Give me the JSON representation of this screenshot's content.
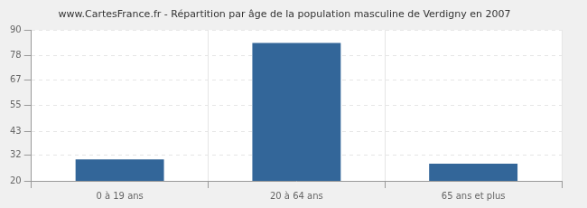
{
  "chart_data": {
    "type": "bar",
    "title": "www.CartesFrance.fr - Répartition par âge de la population masculine de Verdigny en 2007",
    "categories": [
      "0 à 19 ans",
      "20 à 64 ans",
      "65 ans et plus"
    ],
    "values": [
      30,
      84,
      28
    ],
    "color": "#336699",
    "ylim": [
      20,
      90
    ],
    "yticks": [
      20,
      32,
      43,
      55,
      67,
      78,
      90
    ],
    "grid": true
  }
}
